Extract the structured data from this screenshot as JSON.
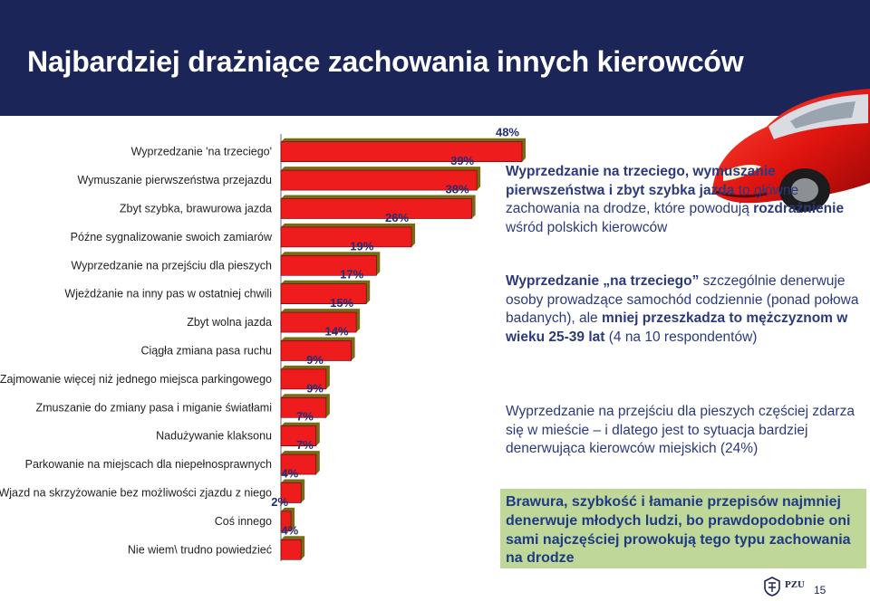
{
  "slide": {
    "title": "Najbardziej drażniące zachowania innych kierowców",
    "page_number": "15",
    "brand": "PZU"
  },
  "text_blocks": {
    "c1": {
      "p1": "Wyprzedzanie na trzeciego, wymuszanie pierwszeństwa i zbyt szybka jazda",
      "p2": " to główne zachowania na drodze, które powodują ",
      "p3": "rozdrażnienie",
      "p4": " wśród polskich kierowców"
    },
    "c2": {
      "p1": "Wyprzedzanie „na trzeciego”",
      "p2": " szczególnie denerwuje osoby prowadzące samochód codziennie (ponad połowa badanych), ale ",
      "p3": "mniej przeszkadza to mężczyznom w wieku 25-39 lat",
      "p4": " (4 na 10 respondentów)"
    },
    "c3": "Wyprzedzanie na przejściu dla pieszych częściej zdarza się w mieście – i dlatego jest to sytuacja bardziej denerwująca kierowców miejskich (24%)",
    "green": "Brawura, szybkość i łamanie przepisów najmniej denerwuje młodych ludzi, bo prawdopodobnie oni sami najczęściej prowokują tego typu zachowania na drodze"
  },
  "colors": {
    "header": "#1b2558",
    "bar_fill": "#ee1c1c",
    "bar_shadow": "#7a6a16",
    "bar_edge": "#5a0000",
    "value_label": "#1f2f78",
    "highlight_box": "#bfd89a"
  },
  "chart_data": {
    "type": "bar",
    "orientation": "horizontal",
    "unit": "%",
    "xlim": [
      0,
      48
    ],
    "categories": [
      "Wyprzedzanie 'na trzeciego'",
      "Wymuszanie pierwszeństwa przejazdu",
      "Zbyt szybka, brawurowa jazda",
      "Późne sygnalizowanie swoich zamiarów",
      "Wyprzedzanie na przejściu dla pieszych",
      "Wjeżdżanie na inny pas w ostatniej chwili",
      "Zbyt wolna jazda",
      "Ciągła zmiana pasa ruchu",
      "Zajmowanie więcej niż jednego miejsca parkingowego",
      "Zmuszanie do zmiany pasa i miganie światłami",
      "Nadużywanie klaksonu",
      "Parkowanie na miejscach dla niepełnosprawnych",
      "Wjazd na skrzyżowanie bez możliwości zjazdu z niego",
      "Coś innego",
      "Nie wiem\\ trudno powiedzieć"
    ],
    "values": [
      48,
      39,
      38,
      26,
      19,
      17,
      15,
      14,
      9,
      9,
      7,
      7,
      4,
      2,
      4
    ],
    "value_labels": [
      "48%",
      "39%",
      "38%",
      "26%",
      "19%",
      "17%",
      "15%",
      "14%",
      "9%",
      "9%",
      "7%",
      "7%",
      "4%",
      "2%",
      "4%"
    ],
    "grid": false,
    "legend": "none"
  }
}
